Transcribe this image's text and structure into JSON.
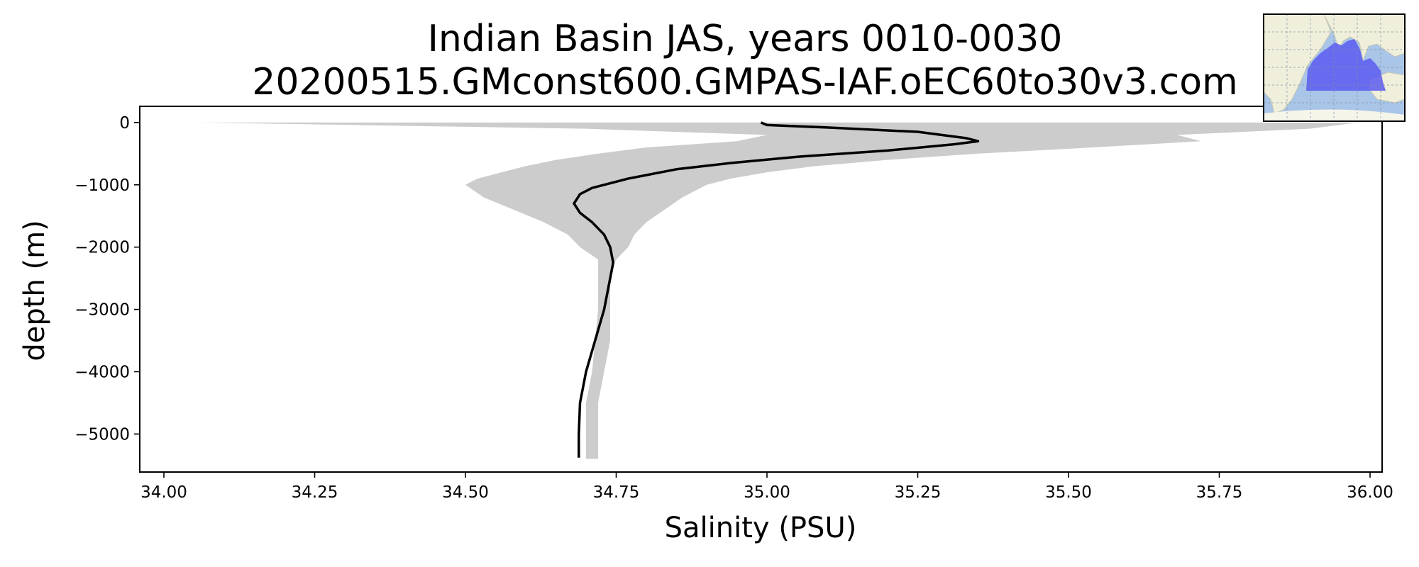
{
  "chart_data": {
    "type": "line",
    "title": "Indian Basin JAS, years 0010-0030",
    "subtitle": "20200515.GMconst600.GMPAS-IAF.oEC60to30v3.com",
    "xlabel": "Salinity (PSU)",
    "ylabel": "depth (m)",
    "xlim": [
      33.96,
      36.02
    ],
    "ylim": [
      -5610,
      260
    ],
    "xticks": [
      {
        "value": 34.0,
        "label": "34.00"
      },
      {
        "value": 34.25,
        "label": "34.25"
      },
      {
        "value": 34.5,
        "label": "34.50"
      },
      {
        "value": 34.75,
        "label": "34.75"
      },
      {
        "value": 35.0,
        "label": "35.00"
      },
      {
        "value": 35.25,
        "label": "35.25"
      },
      {
        "value": 35.5,
        "label": "35.50"
      },
      {
        "value": 35.75,
        "label": "35.75"
      },
      {
        "value": 36.0,
        "label": "36.00"
      }
    ],
    "yticks": [
      {
        "value": 0,
        "label": "0"
      },
      {
        "value": -1000,
        "label": "−1000"
      },
      {
        "value": -2000,
        "label": "−2000"
      },
      {
        "value": -3000,
        "label": "−3000"
      },
      {
        "value": -4000,
        "label": "−4000"
      },
      {
        "value": -5000,
        "label": "−5000"
      }
    ],
    "grid": false,
    "legend": "none",
    "series": [
      {
        "kind": "mean-line",
        "color": "#000000",
        "depth": [
          0,
          -40,
          -80,
          -150,
          -250,
          -300,
          -350,
          -450,
          -550,
          -650,
          -750,
          -900,
          -1050,
          -1150,
          -1300,
          -1450,
          -1600,
          -1800,
          -2000,
          -2250,
          -2500,
          -3000,
          -3500,
          -4000,
          -4500,
          -5000,
          -5380
        ],
        "salinity": [
          34.99,
          35.0,
          35.1,
          35.25,
          35.33,
          35.35,
          35.31,
          35.2,
          35.05,
          34.94,
          34.85,
          34.77,
          34.71,
          34.69,
          34.68,
          34.69,
          34.71,
          34.73,
          34.74,
          34.745,
          34.74,
          34.73,
          34.715,
          34.7,
          34.69,
          34.688,
          34.688
        ]
      },
      {
        "kind": "envelope",
        "color": "#cccccc",
        "depth_upper": [
          0,
          -100,
          -200,
          -300,
          -400,
          -500,
          -600,
          -700,
          -800,
          -900,
          -1000,
          -1200,
          -1400,
          -1600,
          -1800,
          -2000,
          -2200,
          -2400,
          -3000,
          -3500,
          -4000,
          -4500,
          -5000,
          -5400
        ],
        "salinity_max": [
          35.98,
          35.9,
          35.68,
          35.72,
          35.54,
          35.35,
          35.2,
          35.08,
          35.0,
          34.94,
          34.9,
          34.86,
          34.83,
          34.8,
          34.78,
          34.77,
          34.75,
          34.74,
          34.74,
          34.74,
          34.73,
          34.72,
          34.72,
          34.72
        ],
        "salinity_min": [
          34.06,
          34.7,
          35.0,
          34.95,
          34.8,
          34.72,
          34.65,
          34.6,
          34.56,
          34.52,
          34.5,
          34.53,
          34.58,
          34.63,
          34.67,
          34.69,
          34.72,
          34.72,
          34.72,
          34.715,
          34.71,
          34.7,
          34.7,
          34.7
        ]
      }
    ]
  },
  "inset_map": {
    "region": "Indian Basin",
    "land_color": "#efefdb",
    "ocean_color": "#a9c5e8",
    "region_color": "#5a5af0"
  }
}
